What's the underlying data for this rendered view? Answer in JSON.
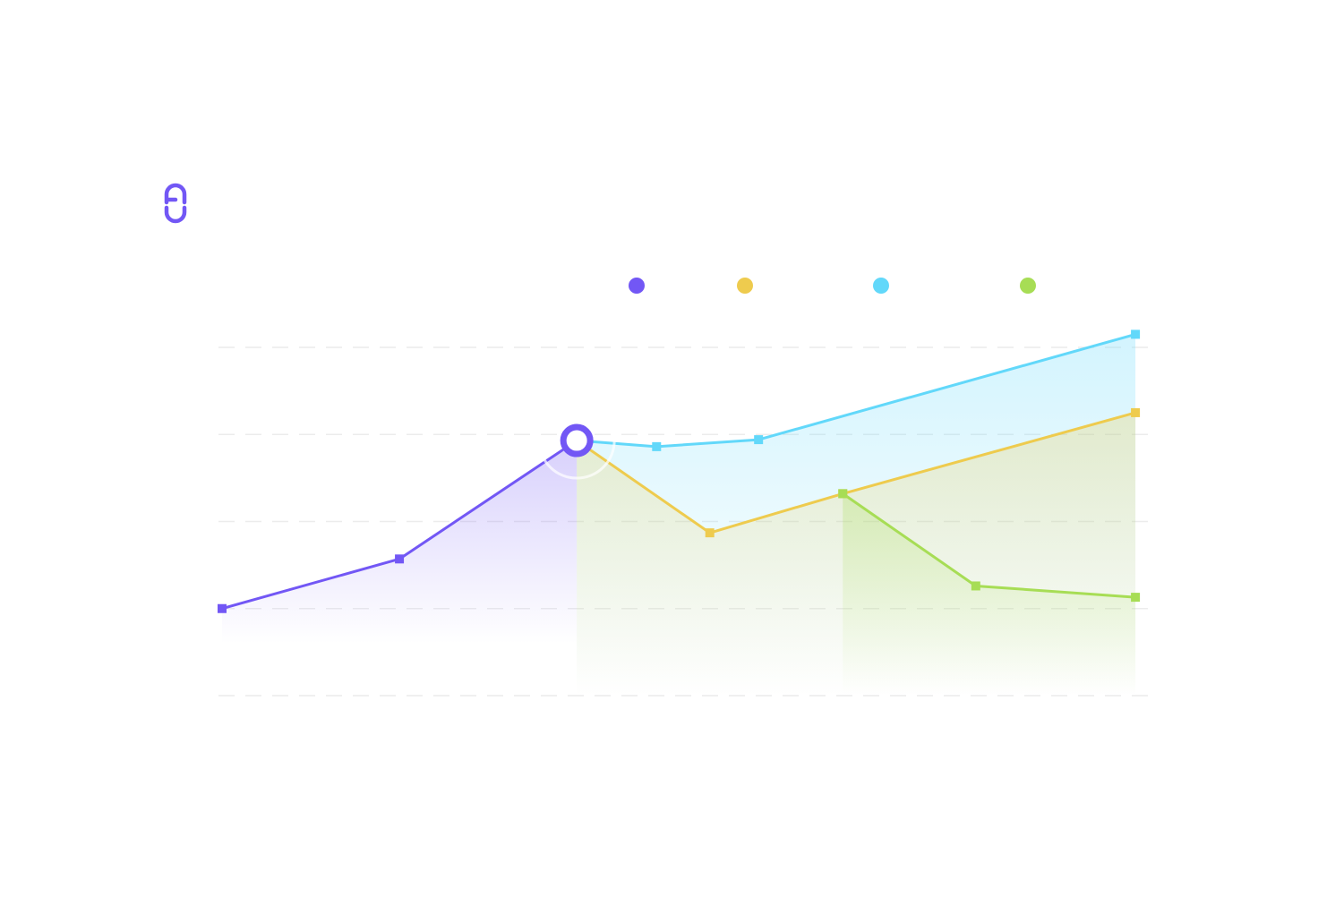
{
  "brand": {
    "logo_icon": "link-chain-icon",
    "color": "#7257F5"
  },
  "chart_data": {
    "type": "area",
    "title": "",
    "xlabel": "",
    "ylabel": "",
    "legend": "top-right",
    "grid": true,
    "ylim": [
      0,
      4
    ],
    "xlim": [
      0,
      10.4
    ],
    "series": [
      {
        "color": "#7257F5",
        "x": [
          0,
          2,
          4
        ],
        "values": [
          1.0,
          1.57,
          2.93
        ]
      },
      {
        "color": "#62D8FA",
        "x": [
          4,
          4.9,
          6.05,
          10.3
        ],
        "values": [
          2.93,
          2.86,
          2.94,
          4.15
        ]
      },
      {
        "color": "#EECB4E",
        "x": [
          4,
          5.5,
          7,
          10.3
        ],
        "values": [
          2.93,
          1.87,
          2.32,
          3.25
        ]
      },
      {
        "color": "#A7DD55",
        "x": [
          7,
          8.5,
          10.3
        ],
        "values": [
          2.32,
          1.26,
          1.13
        ]
      }
    ],
    "highlight": {
      "x": 4,
      "y": 2.93,
      "color": "#7257F5"
    }
  }
}
